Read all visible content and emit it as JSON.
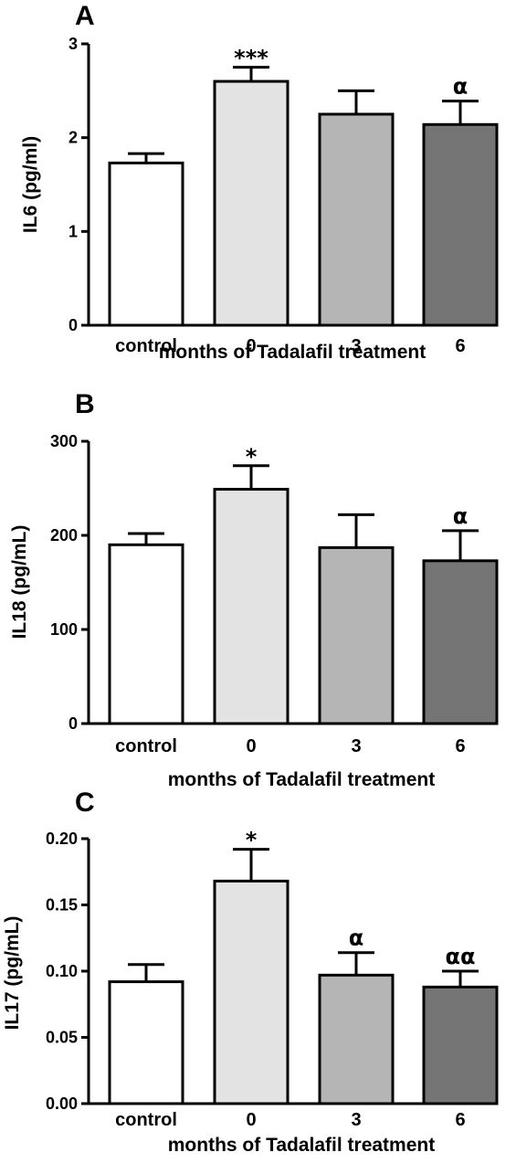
{
  "chart_data": [
    {
      "type": "bar",
      "panel_label": "A",
      "categories": [
        "control",
        "0",
        "3",
        "6"
      ],
      "values": [
        1.73,
        2.6,
        2.25,
        2.14
      ],
      "errors": [
        0.1,
        0.15,
        0.25,
        0.25
      ],
      "significance": [
        "",
        "***",
        "",
        "α"
      ],
      "colors": [
        "#ffffff",
        "#e3e3e3",
        "#b5b5b5",
        "#757575"
      ],
      "xlabel": "months of Tadalafil treatment",
      "ylabel": "IL6 (pg/ml)",
      "ylim": [
        0,
        3
      ],
      "yticks": [
        0,
        1,
        2,
        3
      ],
      "ytick_labels": [
        "0",
        "1",
        "2",
        "3"
      ]
    },
    {
      "type": "bar",
      "panel_label": "B",
      "categories": [
        "control",
        "0",
        "3",
        "6"
      ],
      "values": [
        190,
        249,
        187,
        173
      ],
      "errors": [
        12,
        25,
        35,
        32
      ],
      "significance": [
        "",
        "*",
        "",
        "α"
      ],
      "colors": [
        "#ffffff",
        "#e3e3e3",
        "#b5b5b5",
        "#757575"
      ],
      "xlabel": "months of Tadalafil treatment",
      "ylabel": "IL18 (pg/mL)",
      "ylim": [
        0,
        300
      ],
      "yticks": [
        0,
        100,
        200,
        300
      ],
      "ytick_labels": [
        "0",
        "100",
        "200",
        "300"
      ]
    },
    {
      "type": "bar",
      "panel_label": "C",
      "categories": [
        "control",
        "0",
        "3",
        "6"
      ],
      "values": [
        0.092,
        0.168,
        0.097,
        0.088
      ],
      "errors": [
        0.013,
        0.024,
        0.017,
        0.012
      ],
      "significance": [
        "",
        "*",
        "α",
        "αα"
      ],
      "colors": [
        "#ffffff",
        "#e3e3e3",
        "#b5b5b5",
        "#757575"
      ],
      "xlabel": "months of Tadalafil treatment",
      "ylabel": "IL17 (pg/mL)",
      "ylim": [
        0,
        0.2
      ],
      "yticks": [
        0,
        0.05,
        0.1,
        0.15,
        0.2
      ],
      "ytick_labels": [
        "0.00",
        "0.05",
        "0.10",
        "0.15",
        "0.20"
      ]
    }
  ]
}
